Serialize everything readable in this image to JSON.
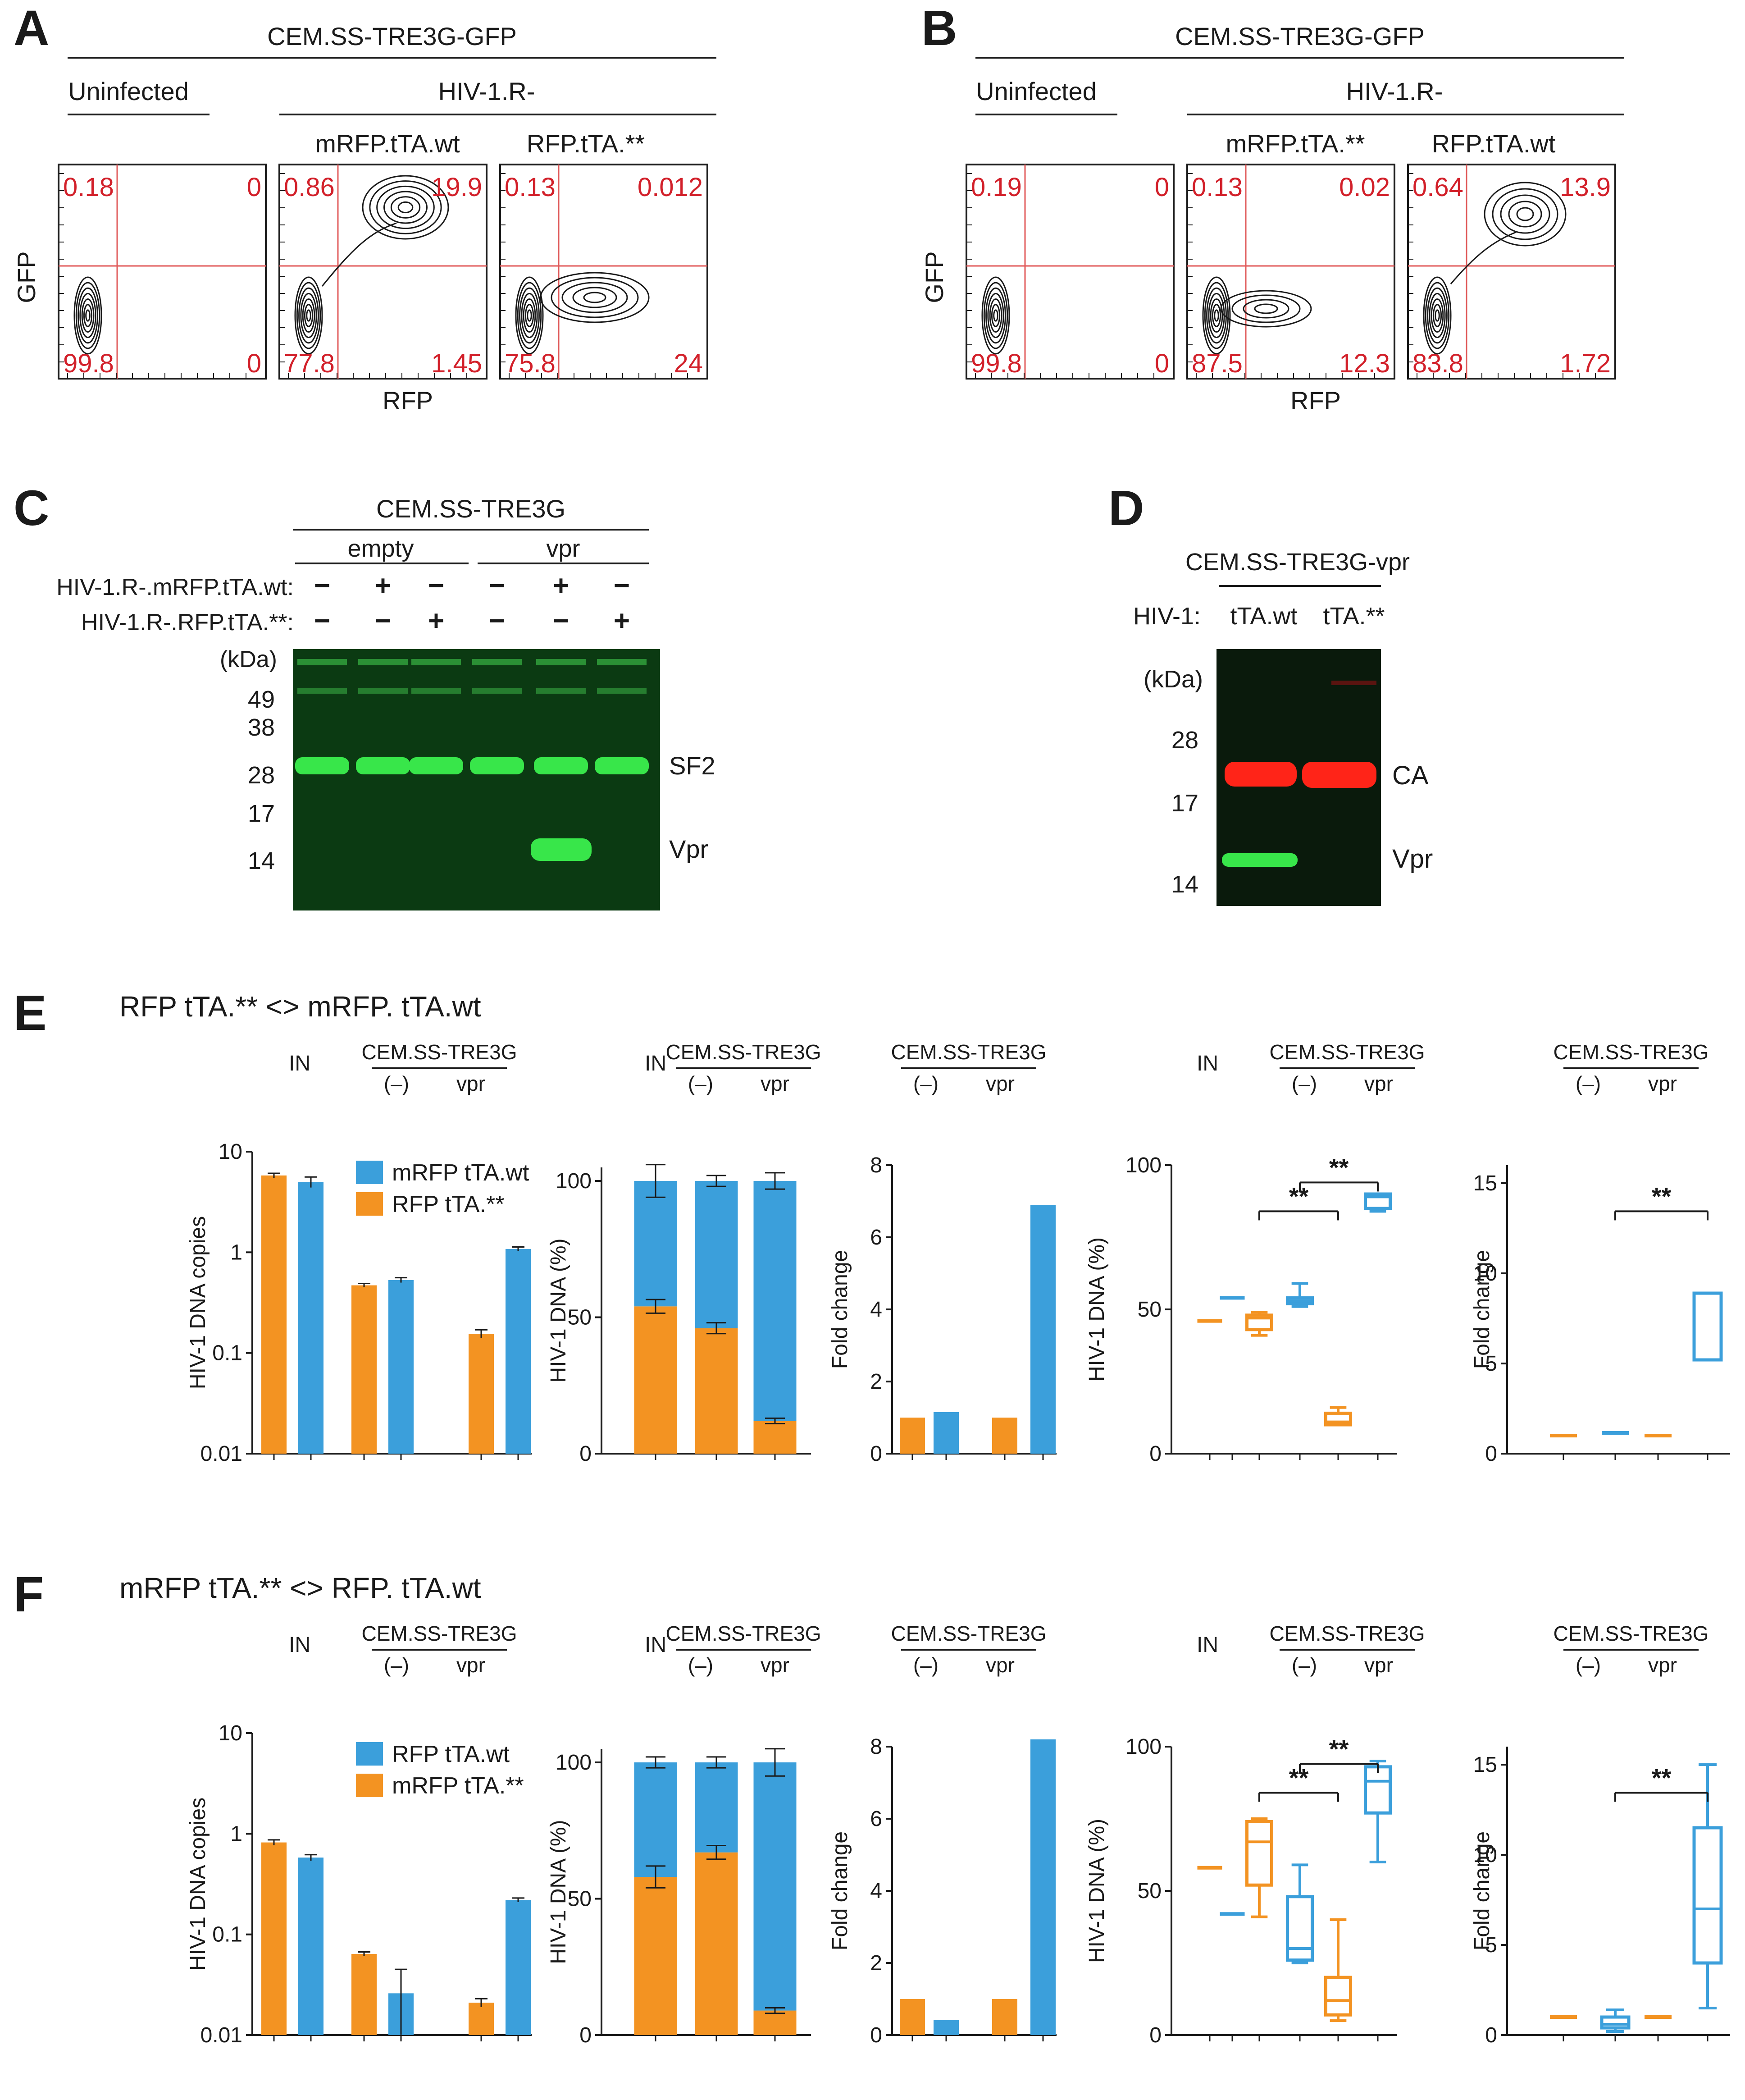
{
  "colors": {
    "orange": "#F39322",
    "blue": "#3B9FDB",
    "red_text": "#D2202A",
    "gate": "#E05A5A",
    "blot_bg": "#0B3A12",
    "green_band": "#38E64A",
    "red_band": "#FF2418"
  },
  "panelA": {
    "letter": "A",
    "cell": "CEM.SS-TRE3G-GFP",
    "uninfected": "Uninfected",
    "virus": "HIV-1.R-",
    "labels": [
      "mRFP.tTA.wt",
      "RFP.tTA.**"
    ],
    "ylabel": "GFP",
    "xlabel": "RFP",
    "plots": [
      {
        "q": [
          "0.18",
          "0",
          "99.8",
          "0"
        ]
      },
      {
        "q": [
          "0.86",
          "19.9",
          "77.8",
          "1.45"
        ]
      },
      {
        "q": [
          "0.13",
          "0.012",
          "75.8",
          "24"
        ]
      }
    ]
  },
  "panelB": {
    "letter": "B",
    "cell": "CEM.SS-TRE3G-GFP",
    "uninfected": "Uninfected",
    "virus": "HIV-1.R-",
    "labels": [
      "mRFP.tTA.**",
      "RFP.tTA.wt"
    ],
    "ylabel": "GFP",
    "xlabel": "RFP",
    "plots": [
      {
        "q": [
          "0.19",
          "0",
          "99.8",
          "0"
        ]
      },
      {
        "q": [
          "0.13",
          "0.02",
          "87.5",
          "12.3"
        ]
      },
      {
        "q": [
          "0.64",
          "13.9",
          "83.8",
          "1.72"
        ]
      }
    ]
  },
  "panelC": {
    "letter": "C",
    "cell": "CEM.SS-TRE3G",
    "groups": [
      "empty",
      "vpr"
    ],
    "rows": [
      {
        "label": "HIV-1.R-.mRFP.tTA.wt:",
        "signs": [
          "−",
          "+",
          "−",
          "−",
          "+",
          "−"
        ]
      },
      {
        "label": "HIV-1.R-.RFP.tTA.**:",
        "signs": [
          "−",
          "−",
          "+",
          "−",
          "−",
          "+"
        ]
      }
    ],
    "kda": "(kDa)",
    "markers": [
      "49",
      "38",
      "28",
      "17",
      "14"
    ],
    "bands": [
      "SF2",
      "Vpr"
    ]
  },
  "panelD": {
    "letter": "D",
    "cell": "CEM.SS-TRE3G-vpr",
    "hiv": "HIV-1:",
    "lanes": [
      "tTA.wt",
      "tTA.**"
    ],
    "kda": "(kDa)",
    "markers": [
      "28",
      "17",
      "14"
    ],
    "bands": [
      "CA",
      "Vpr"
    ]
  },
  "panelE": {
    "letter": "E",
    "title": "RFP tTA.** <> mRFP. tTA.wt",
    "in_label": "IN",
    "cell": "CEM.SS-TRE3G",
    "neg": "(–)",
    "vpr": "vpr",
    "legend": [
      "mRFP tTA.wt",
      "RFP tTA.**"
    ],
    "ylab1": "HIV-1 DNA copies",
    "ylab2": "HIV-1 DNA (%)",
    "ylab3": "Fold change",
    "ylab4": "HIV-1 DNA (%)",
    "ylab5": "Fold change",
    "log_ticks": [
      "10",
      "1",
      "0.1",
      "0.01"
    ],
    "pct_ticks": [
      "100",
      "50",
      "0"
    ],
    "fold_ticks": [
      "8",
      "6",
      "4",
      "2",
      "0"
    ],
    "pct4_ticks": [
      "100",
      "50",
      "0"
    ],
    "fold5_ticks": [
      "15",
      "10",
      "5",
      "0"
    ],
    "sig": "**"
  },
  "panelF": {
    "letter": "F",
    "title": "mRFP tTA.** <> RFP. tTA.wt",
    "in_label": "IN",
    "cell": "CEM.SS-TRE3G",
    "neg": "(–)",
    "vpr": "vpr",
    "legend": [
      "RFP tTA.wt",
      "mRFP tTA.**"
    ],
    "ylab1": "HIV-1 DNA copies",
    "ylab2": "HIV-1 DNA (%)",
    "ylab3": "Fold change",
    "ylab4": "HIV-1 DNA (%)",
    "ylab5": "Fold change",
    "log_ticks": [
      "10",
      "1",
      "0.1",
      "0.01"
    ],
    "pct_ticks": [
      "100",
      "50",
      "0"
    ],
    "fold_ticks": [
      "8",
      "6",
      "4",
      "2",
      "0"
    ],
    "pct4_ticks": [
      "100",
      "50",
      "0"
    ],
    "fold5_ticks": [
      "15",
      "10",
      "5",
      "0"
    ],
    "sig": "**"
  },
  "chart_data": [
    {
      "id": "E1",
      "type": "bar",
      "ylabel": "HIV-1 DNA copies",
      "yscale": "log",
      "ylim": [
        0.01,
        10
      ],
      "categories": [
        "IN",
        "(–)",
        "vpr"
      ],
      "series": [
        {
          "name": "RFP tTA.**",
          "values": [
            5.8,
            0.47,
            0.155
          ],
          "err": [
            0.3,
            0.02,
            0.015
          ]
        },
        {
          "name": "mRFP tTA.wt",
          "values": [
            5.0,
            0.53,
            1.08
          ],
          "err": [
            0.6,
            0.03,
            0.05
          ]
        }
      ]
    },
    {
      "id": "E2",
      "type": "bar",
      "stacked": true,
      "ylabel": "HIV-1 DNA (%)",
      "ylim": [
        0,
        100
      ],
      "categories": [
        "IN",
        "(–)",
        "vpr"
      ],
      "series": [
        {
          "name": "RFP tTA.**",
          "values": [
            54,
            46,
            12
          ],
          "err": [
            2.5,
            2,
            1
          ]
        },
        {
          "name": "mRFP tTA.wt",
          "values": [
            46,
            54,
            88
          ],
          "err": [
            6,
            2,
            3
          ]
        }
      ]
    },
    {
      "id": "E3",
      "type": "bar",
      "ylabel": "Fold change",
      "ylim": [
        0,
        8
      ],
      "categories": [
        "(–)",
        "vpr"
      ],
      "series": [
        {
          "name": "RFP tTA.**",
          "values": [
            1,
            1
          ]
        },
        {
          "name": "mRFP tTA.wt",
          "values": [
            1.15,
            6.9
          ]
        }
      ]
    },
    {
      "id": "E4",
      "type": "box",
      "ylabel": "HIV-1 DNA (%)",
      "ylim": [
        0,
        100
      ],
      "boxes": [
        {
          "min": 46,
          "q1": 46,
          "med": 46,
          "q3": 46,
          "max": 46,
          "series": "orange"
        },
        {
          "min": 54,
          "q1": 54,
          "med": 54,
          "q3": 54,
          "max": 54,
          "series": "blue"
        },
        {
          "min": 41,
          "q1": 43,
          "med": 47,
          "q3": 48,
          "max": 49,
          "series": "orange"
        },
        {
          "min": 51,
          "q1": 52,
          "med": 53,
          "q3": 54,
          "max": 59,
          "series": "blue"
        },
        {
          "min": 10,
          "q1": 10,
          "med": 11,
          "q3": 14,
          "max": 16,
          "series": "orange"
        },
        {
          "min": 84,
          "q1": 85,
          "med": 89,
          "q3": 90,
          "max": 90,
          "series": "blue"
        }
      ],
      "significance": [
        {
          "from": 2,
          "to": 4,
          "label": "**"
        },
        {
          "from": 3,
          "to": 5,
          "label": "**"
        }
      ]
    },
    {
      "id": "E5",
      "type": "box",
      "ylabel": "Fold change",
      "ylim": [
        0,
        16
      ],
      "boxes": [
        {
          "min": 1,
          "q1": 1,
          "med": 1,
          "q3": 1,
          "max": 1,
          "series": "orange"
        },
        {
          "min": 1.05,
          "q1": 1.1,
          "med": 1.15,
          "q3": 1.2,
          "max": 1.25,
          "series": "blue"
        },
        {
          "min": 1,
          "q1": 1,
          "med": 1,
          "q3": 1,
          "max": 1,
          "series": "orange"
        },
        {
          "min": 5.2,
          "q1": 5.2,
          "med": 5.2,
          "q3": 8.9,
          "max": 8.9,
          "series": "blue"
        }
      ],
      "significance": [
        {
          "from": 1,
          "to": 3,
          "label": "**"
        }
      ]
    },
    {
      "id": "F1",
      "type": "bar",
      "ylabel": "HIV-1 DNA copies",
      "yscale": "log",
      "ylim": [
        0.01,
        10
      ],
      "categories": [
        "IN",
        "(–)",
        "vpr"
      ],
      "series": [
        {
          "name": "mRFP tTA.**",
          "values": [
            0.82,
            0.064,
            0.021
          ],
          "err": [
            0.05,
            0.003,
            0.002
          ]
        },
        {
          "name": "RFP tTA.wt",
          "values": [
            0.58,
            0.026,
            0.22
          ],
          "err": [
            0.04,
            0.019,
            0.01
          ]
        }
      ]
    },
    {
      "id": "F2",
      "type": "bar",
      "stacked": true,
      "ylabel": "HIV-1 DNA (%)",
      "ylim": [
        0,
        100
      ],
      "categories": [
        "IN",
        "(–)",
        "vpr"
      ],
      "series": [
        {
          "name": "mRFP tTA.**",
          "values": [
            58,
            67,
            9
          ],
          "err": [
            4,
            2.5,
            1
          ]
        },
        {
          "name": "RFP tTA.wt",
          "values": [
            42,
            33,
            91
          ],
          "err": [
            2,
            2,
            5
          ]
        }
      ]
    },
    {
      "id": "F3",
      "type": "bar",
      "ylabel": "Fold change",
      "ylim": [
        0,
        8
      ],
      "categories": [
        "(–)",
        "vpr"
      ],
      "series": [
        {
          "name": "mRFP tTA.**",
          "values": [
            1,
            1
          ]
        },
        {
          "name": "RFP tTA.wt",
          "values": [
            0.42,
            8.2
          ]
        }
      ]
    },
    {
      "id": "F4",
      "type": "box",
      "ylabel": "HIV-1 DNA (%)",
      "ylim": [
        0,
        100
      ],
      "boxes": [
        {
          "min": 58,
          "q1": 58,
          "med": 58,
          "q3": 58,
          "max": 58,
          "series": "orange"
        },
        {
          "min": 42,
          "q1": 42,
          "med": 42,
          "q3": 42,
          "max": 42,
          "series": "blue"
        },
        {
          "min": 41,
          "q1": 52,
          "med": 67,
          "q3": 74,
          "max": 75,
          "series": "orange"
        },
        {
          "min": 25,
          "q1": 26,
          "med": 30,
          "q3": 48,
          "max": 59,
          "series": "blue"
        },
        {
          "min": 5,
          "q1": 7,
          "med": 12,
          "q3": 20,
          "max": 40,
          "series": "orange"
        },
        {
          "min": 60,
          "q1": 77,
          "med": 88,
          "q3": 93,
          "max": 95,
          "series": "blue"
        }
      ],
      "significance": [
        {
          "from": 2,
          "to": 4,
          "label": "**"
        },
        {
          "from": 3,
          "to": 5,
          "label": "**"
        }
      ]
    },
    {
      "id": "F5",
      "type": "box",
      "ylabel": "Fold change",
      "ylim": [
        0,
        16
      ],
      "boxes": [
        {
          "min": 1,
          "q1": 1,
          "med": 1,
          "q3": 1,
          "max": 1,
          "series": "orange"
        },
        {
          "min": 0.2,
          "q1": 0.4,
          "med": 0.6,
          "q3": 1.0,
          "max": 1.4,
          "series": "blue"
        },
        {
          "min": 1,
          "q1": 1,
          "med": 1,
          "q3": 1,
          "max": 1,
          "series": "orange"
        },
        {
          "min": 1.5,
          "q1": 4,
          "med": 7,
          "q3": 11.5,
          "max": 15,
          "series": "blue"
        }
      ],
      "significance": [
        {
          "from": 1,
          "to": 3,
          "label": "**"
        }
      ]
    }
  ]
}
